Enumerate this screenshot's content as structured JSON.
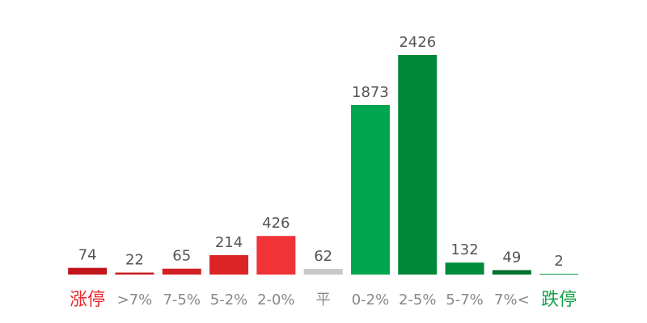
{
  "chart_data": {
    "type": "bar",
    "categories": [
      "涨停",
      ">7%",
      "7-5%",
      "5-2%",
      "2-0%",
      "平",
      "0-2%",
      "2-5%",
      "5-7%",
      "7%<",
      "跌停"
    ],
    "values": [
      74,
      22,
      65,
      214,
      426,
      62,
      1873,
      2426,
      132,
      49,
      2
    ],
    "colors": [
      "#c0161b",
      "#c91c1f",
      "#d32023",
      "#dc2426",
      "#ef3336",
      "#c8c8c8",
      "#00a54f",
      "#00873a",
      "#008a3c",
      "#00712e",
      "#0a9a45"
    ]
  }
}
